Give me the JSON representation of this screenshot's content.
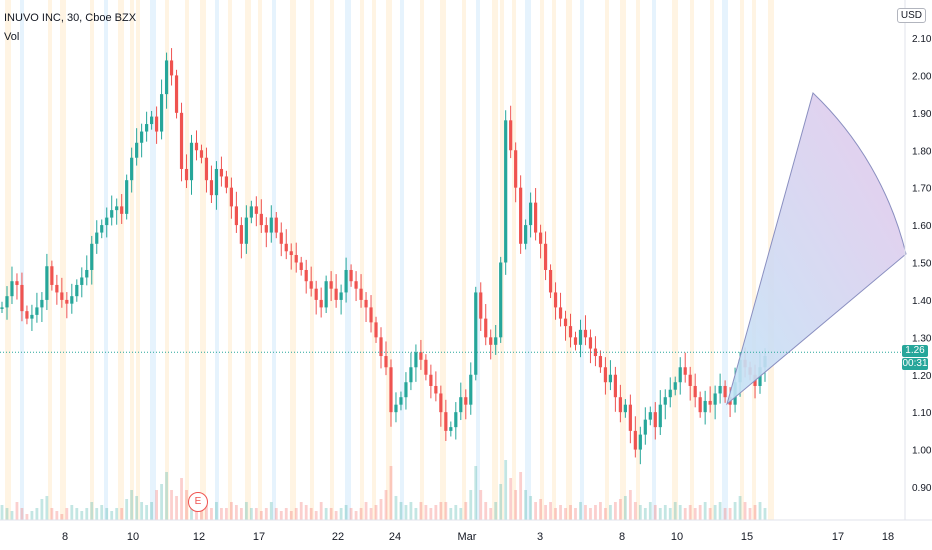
{
  "header": {
    "symbol_line": "INUVO INC, 30, Cboe BZX",
    "indicator": "Vol"
  },
  "currency_button": "USD",
  "last_price": {
    "value": "1.26",
    "countdown": "00:31",
    "price": 1.26
  },
  "earnings_marker": "E",
  "colors": {
    "up": "#26a69a",
    "down": "#ef5350",
    "price_line": "#26a69a",
    "session_orange": "#fff3e0",
    "session_blue": "#e3f2fd",
    "fan_start": "#c3e4f7",
    "fan_end": "#e5c6ea",
    "fan_stroke": "#8a8fc0"
  },
  "chart_data": {
    "type": "candlestick",
    "y_axis": {
      "ticks": [
        "2.10",
        "2.00",
        "1.90",
        "1.80",
        "1.70",
        "1.60",
        "1.50",
        "1.40",
        "1.30",
        "1.20",
        "1.10",
        "1.00",
        "0.90"
      ],
      "ylim": [
        0.85,
        2.13
      ]
    },
    "x_axis": {
      "ticks": [
        "8",
        "10",
        "12",
        "17",
        "22",
        "24",
        "Mar",
        "3",
        "8",
        "10",
        "15",
        "17",
        "18"
      ]
    },
    "series": [
      {
        "name": "price_path",
        "values": [
          1.38,
          1.41,
          1.45,
          1.44,
          1.37,
          1.35,
          1.36,
          1.38,
          1.4,
          1.49,
          1.44,
          1.42,
          1.4,
          1.39,
          1.41,
          1.44,
          1.46,
          1.48,
          1.55,
          1.58,
          1.6,
          1.62,
          1.64,
          1.65,
          1.63,
          1.72,
          1.78,
          1.82,
          1.85,
          1.87,
          1.89,
          1.85,
          1.95,
          2.04,
          2.0,
          1.9,
          1.75,
          1.72,
          1.82,
          1.8,
          1.78,
          1.72,
          1.68,
          1.75,
          1.73,
          1.7,
          1.65,
          1.6,
          1.55,
          1.62,
          1.65,
          1.63,
          1.6,
          1.58,
          1.62,
          1.58,
          1.55,
          1.53,
          1.52,
          1.5,
          1.48,
          1.45,
          1.43,
          1.4,
          1.38,
          1.45,
          1.43,
          1.4,
          1.42,
          1.48,
          1.45,
          1.43,
          1.4,
          1.38,
          1.34,
          1.3,
          1.25,
          1.22,
          1.1,
          1.12,
          1.14,
          1.18,
          1.22,
          1.26,
          1.24,
          1.2,
          1.17,
          1.15,
          1.1,
          1.05,
          1.06,
          1.1,
          1.14,
          1.12,
          1.2,
          1.42,
          1.35,
          1.3,
          1.28,
          1.3,
          1.5,
          1.88,
          1.8,
          1.7,
          1.55,
          1.6,
          1.66,
          1.58,
          1.55,
          1.48,
          1.42,
          1.38,
          1.35,
          1.33,
          1.3,
          1.28,
          1.32,
          1.3,
          1.27,
          1.25,
          1.22,
          1.18,
          1.2,
          1.14,
          1.1,
          1.12,
          1.05,
          1.0,
          1.04,
          1.08,
          1.1,
          1.06,
          1.12,
          1.14,
          1.16,
          1.18,
          1.22,
          1.2,
          1.17,
          1.14,
          1.1,
          1.13,
          1.12,
          1.15,
          1.17,
          1.14,
          1.12,
          1.18,
          1.24,
          1.22,
          1.2,
          1.17,
          1.22,
          1.25
        ]
      },
      {
        "name": "volume_rel",
        "values": [
          0.25,
          0.2,
          0.15,
          0.3,
          0.2,
          0.1,
          0.15,
          0.2,
          0.35,
          0.4,
          0.2,
          0.15,
          0.1,
          0.2,
          0.25,
          0.2,
          0.15,
          0.2,
          0.3,
          0.2,
          0.25,
          0.2,
          0.15,
          0.2,
          0.2,
          0.35,
          0.5,
          0.4,
          0.3,
          0.25,
          0.3,
          0.5,
          0.6,
          0.8,
          0.5,
          0.4,
          0.7,
          0.5,
          0.3,
          0.2,
          0.3,
          0.25,
          0.2,
          0.3,
          0.2,
          0.2,
          0.3,
          0.25,
          0.2,
          0.3,
          0.2,
          0.2,
          0.15,
          0.2,
          0.3,
          0.2,
          0.15,
          0.2,
          0.15,
          0.2,
          0.3,
          0.25,
          0.2,
          0.15,
          0.3,
          0.2,
          0.2,
          0.15,
          0.2,
          0.25,
          0.2,
          0.15,
          0.2,
          0.3,
          0.2,
          0.25,
          0.35,
          0.5,
          0.9,
          0.4,
          0.3,
          0.25,
          0.3,
          0.2,
          0.3,
          0.25,
          0.2,
          0.25,
          0.3,
          0.3,
          0.2,
          0.25,
          0.2,
          0.3,
          0.5,
          0.9,
          0.5,
          0.3,
          0.2,
          0.3,
          0.6,
          1.0,
          0.7,
          0.5,
          0.8,
          0.5,
          0.4,
          0.3,
          0.35,
          0.25,
          0.3,
          0.2,
          0.25,
          0.2,
          0.25,
          0.2,
          0.3,
          0.25,
          0.2,
          0.25,
          0.3,
          0.2,
          0.25,
          0.3,
          0.35,
          0.4,
          0.5,
          0.3,
          0.25,
          0.2,
          0.3,
          0.25,
          0.2,
          0.25,
          0.2,
          0.3,
          0.25,
          0.2,
          0.25,
          0.2,
          0.25,
          0.3,
          0.2,
          0.25,
          0.3,
          0.2,
          0.2,
          0.3,
          0.4,
          0.3,
          0.2,
          0.25,
          0.3,
          0.2
        ]
      }
    ]
  }
}
